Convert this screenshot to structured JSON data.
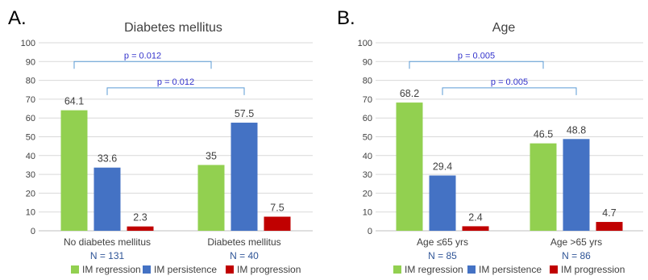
{
  "chart_data": [
    {
      "type": "bar",
      "panel_letter": "A.",
      "title": "Diabetes mellitus",
      "categories": [
        "No diabetes mellitus",
        "Diabetes mellitus"
      ],
      "category_counts": [
        "N = 131",
        "N = 40"
      ],
      "series": [
        {
          "name": "IM regression",
          "color": "#92d050",
          "values": [
            64.1,
            35
          ]
        },
        {
          "name": "IM persistence",
          "color": "#4472c4",
          "values": [
            33.6,
            57.5
          ]
        },
        {
          "name": "IM progression",
          "color": "#c00000",
          "values": [
            2.3,
            7.5
          ]
        }
      ],
      "value_labels": [
        [
          "64.1",
          "35"
        ],
        [
          "33.6",
          "57.5"
        ],
        [
          "2.3",
          "7.5"
        ]
      ],
      "ylim": [
        0,
        100
      ],
      "yticks": [
        0,
        10,
        20,
        30,
        40,
        50,
        60,
        70,
        80,
        90,
        100
      ],
      "grid": true,
      "legend": "bottom",
      "brackets": [
        {
          "label": "p = 0.012",
          "series": 0,
          "y": 90
        },
        {
          "label": "p = 0.012",
          "series": 1,
          "y": 76
        }
      ]
    },
    {
      "type": "bar",
      "panel_letter": "B.",
      "title": "Age",
      "categories": [
        "Age ≤65 yrs",
        "Age >65 yrs"
      ],
      "category_counts": [
        "N = 85",
        "N = 86"
      ],
      "series": [
        {
          "name": "IM regression",
          "color": "#92d050",
          "values": [
            68.2,
            46.5
          ]
        },
        {
          "name": "IM persistence",
          "color": "#4472c4",
          "values": [
            29.4,
            48.8
          ]
        },
        {
          "name": "IM progression",
          "color": "#c00000",
          "values": [
            2.4,
            4.7
          ]
        }
      ],
      "value_labels": [
        [
          "68.2",
          "46.5"
        ],
        [
          "29.4",
          "48.8"
        ],
        [
          "2.4",
          "4.7"
        ]
      ],
      "ylim": [
        0,
        100
      ],
      "yticks": [
        0,
        10,
        20,
        30,
        40,
        50,
        60,
        70,
        80,
        90,
        100
      ],
      "grid": true,
      "legend": "bottom",
      "brackets": [
        {
          "label": "p = 0.005",
          "series": 0,
          "y": 90
        },
        {
          "label": "p = 0.005",
          "series": 1,
          "y": 76
        }
      ]
    }
  ],
  "colors": {
    "grid": "#d9d9d9",
    "axis": "#bfbfbf",
    "text": "#404040",
    "count_text": "#2f5597",
    "bracket": "#5b9bd5",
    "bracket_text": "#3333cc"
  }
}
